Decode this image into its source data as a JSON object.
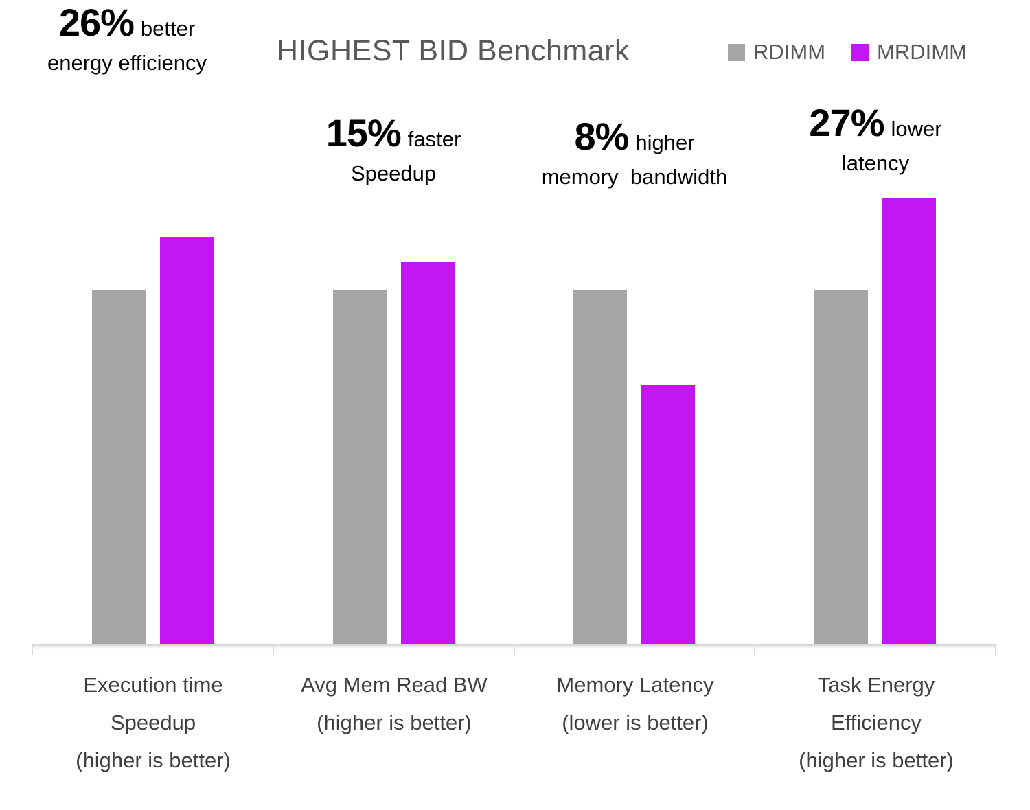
{
  "title": "HIGHEST BID Benchmark",
  "legend": {
    "items": [
      {
        "label": "RDIMM",
        "color": "#A6A6A6"
      },
      {
        "label": "MRDIMM",
        "color": "#C316F2"
      }
    ]
  },
  "annotations": [
    {
      "value": "15%",
      "suffix": "faster",
      "line2": "Speedup"
    },
    {
      "value": "8%",
      "suffix": "higher",
      "line2": "memory  bandwidth"
    },
    {
      "value": "27%",
      "suffix": "lower",
      "line2": "latency"
    },
    {
      "value": "26%",
      "suffix": "better",
      "line2": "energy efficiency"
    }
  ],
  "chart_data": {
    "type": "bar",
    "title": "HIGHEST BID Benchmark",
    "categories": [
      "Execution time\nSpeedup\n(higher is better)",
      "Avg Mem Read BW\n(higher is better)",
      "Memory Latency\n(lower is better)",
      "Task Energy\nEfficiency\n(higher is better)"
    ],
    "series": [
      {
        "name": "RDIMM",
        "color": "#A6A6A6",
        "values": [
          1.0,
          1.0,
          1.0,
          1.0
        ]
      },
      {
        "name": "MRDIMM",
        "color": "#C316F2",
        "values": [
          1.15,
          1.08,
          0.73,
          1.26
        ]
      }
    ],
    "value_basis": "normalized to RDIMM = 1.00",
    "deltas_vs_rdimm_pct": [
      15,
      8,
      -27,
      26
    ],
    "xlabel": "",
    "ylabel": "",
    "ylim": [
      0,
      1.35
    ],
    "grid": false,
    "legend_position": "top-right"
  }
}
